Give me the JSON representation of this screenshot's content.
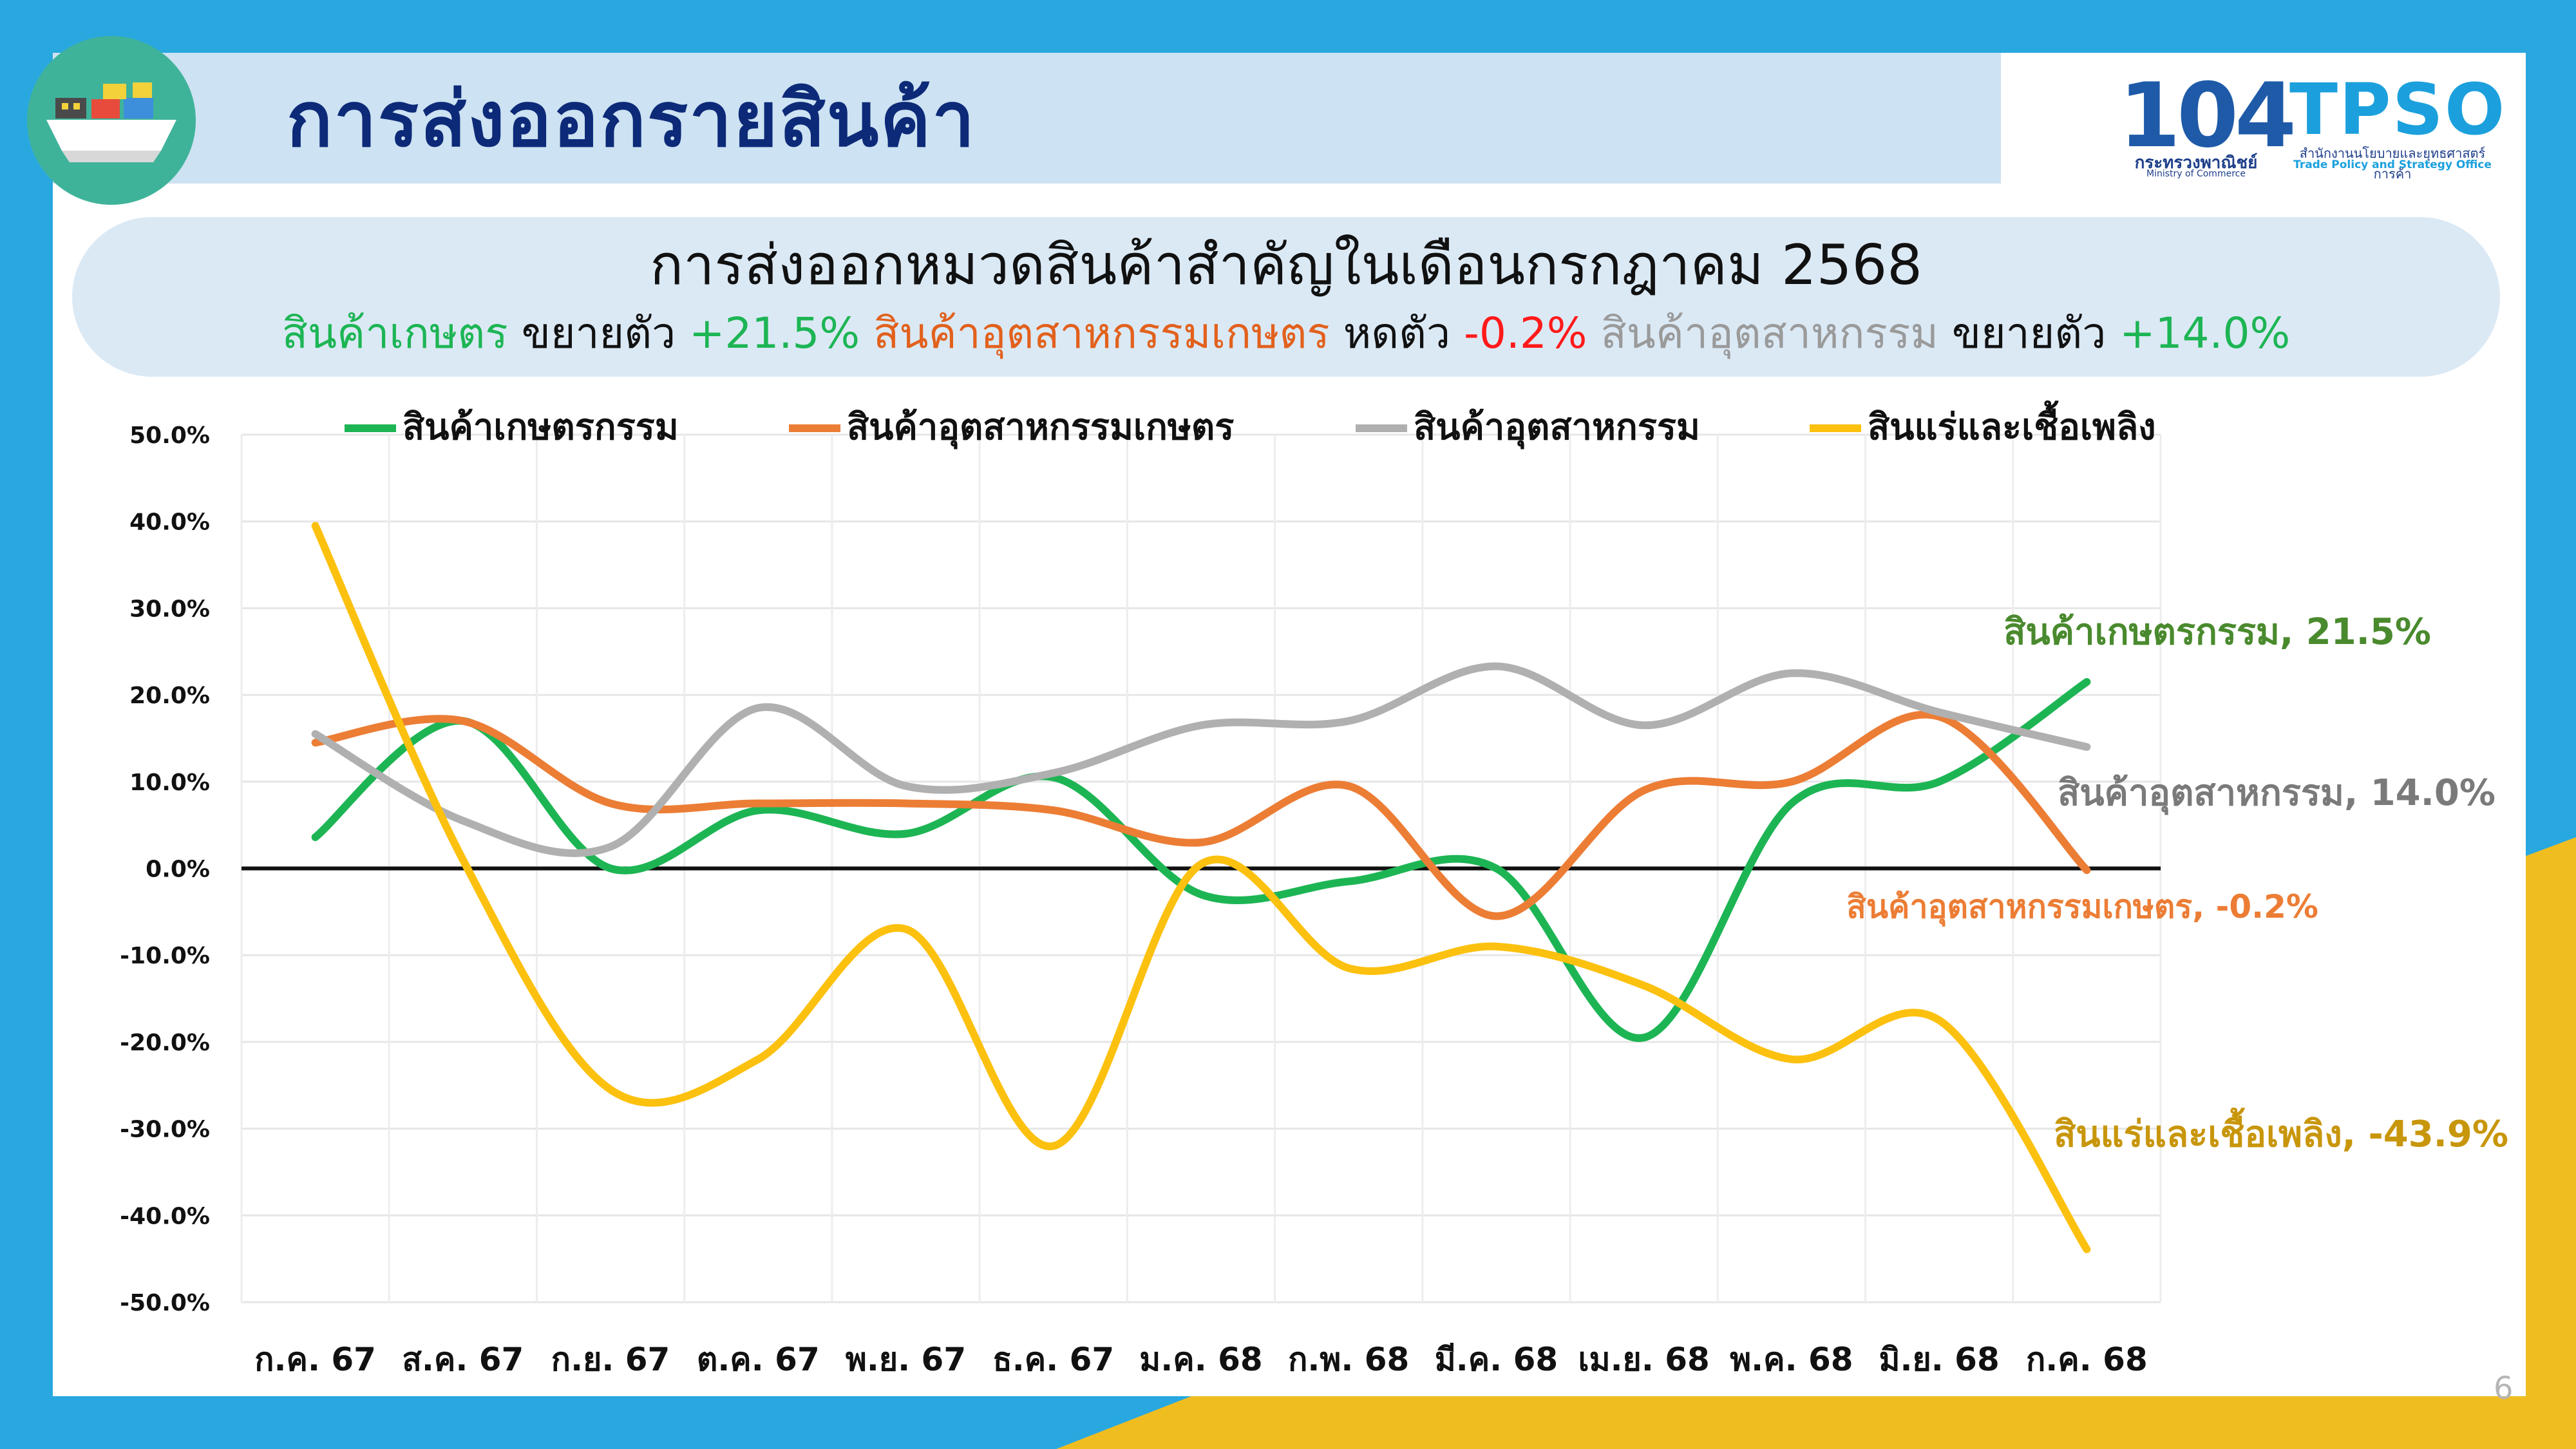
{
  "page_title": "การส่งออกรายสินค้า",
  "logos": {
    "moc_number": "104",
    "moc_th": "กระทรวงพาณิชย์",
    "moc_en": "Ministry of Commerce",
    "tpso": "TPSO",
    "tpso_th": "สำนักงานนโยบายและยุทธศาสตร์การค้า",
    "tpso_en": "Trade Policy and Strategy Office"
  },
  "summary": {
    "title": "การส่งออกหมวดสินค้าสำคัญในเดือนกรกฎาคม 2568",
    "items": [
      {
        "name": "สินค้าเกษตร",
        "verb": "ขยายตัว",
        "value": "+21.5%",
        "name_color": "#1db554",
        "value_color": "#1db554"
      },
      {
        "name": "สินค้าอุตสาหกรรมเกษตร",
        "verb": "หดตัว",
        "value": "-0.2%",
        "name_color": "#e2611d",
        "value_color": "#ff1a1a"
      },
      {
        "name": "สินค้าอุตสาหกรรม",
        "verb": "ขยายตัว",
        "value": "+14.0%",
        "name_color": "#9a9a9a",
        "value_color": "#1db554"
      }
    ]
  },
  "chart_data": {
    "type": "line",
    "smooth": true,
    "categories": [
      "ก.ค. 67",
      "ส.ค. 67",
      "ก.ย. 67",
      "ต.ค. 67",
      "พ.ย. 67",
      "ธ.ค. 67",
      "ม.ค. 68",
      "ก.พ. 68",
      "มี.ค. 68",
      "เม.ย. 68",
      "พ.ค. 68",
      "มิ.ย. 68",
      "ก.ค. 68"
    ],
    "ylim": [
      -50,
      50
    ],
    "ytick_step": 10,
    "ytick_format": "{v}.0%",
    "grid": true,
    "zero_line": true,
    "legend_position": "top",
    "series": [
      {
        "name": "สินค้าเกษตรกรรม",
        "color": "#1db554",
        "values": [
          3.6,
          17.0,
          0.0,
          6.7,
          4.0,
          10.5,
          -3.0,
          -1.5,
          0.0,
          -19.5,
          7.5,
          10.0,
          21.5
        ],
        "end_label": "สินค้าเกษตรกรรม, 21.5%",
        "end_label_color": "#4a8a2e"
      },
      {
        "name": "สินค้าอุตสาหกรรมเกษตร",
        "color": "#ec7d35",
        "values": [
          14.5,
          17.0,
          7.5,
          7.5,
          7.5,
          6.7,
          3.0,
          9.5,
          -5.5,
          9.0,
          10.0,
          17.5,
          -0.2
        ],
        "end_label": "สินค้าอุตสาหกรรมเกษตร, -0.2%",
        "end_label_color": "#ec7d35"
      },
      {
        "name": "สินค้าอุตสาหกรรม",
        "color": "#b0b0b0",
        "values": [
          15.5,
          5.5,
          2.5,
          18.5,
          9.5,
          11.0,
          16.5,
          17.0,
          23.3,
          16.5,
          22.5,
          18.0,
          14.0
        ],
        "end_label": "สินค้าอุตสาหกรรม, 14.0%",
        "end_label_color": "#7a7a7a"
      },
      {
        "name": "สินแร่และเชื้อเพลิง",
        "color": "#fcc10f",
        "values": [
          39.5,
          1.0,
          -25.5,
          -22.0,
          -7.0,
          -32.0,
          0.5,
          -11.5,
          -9.0,
          -13.5,
          -22.0,
          -17.5,
          -43.9
        ],
        "end_label": "สินแร่และเชื้อเพลิง, -43.9%",
        "end_label_color": "#c8960b"
      }
    ]
  },
  "page_number": "6"
}
